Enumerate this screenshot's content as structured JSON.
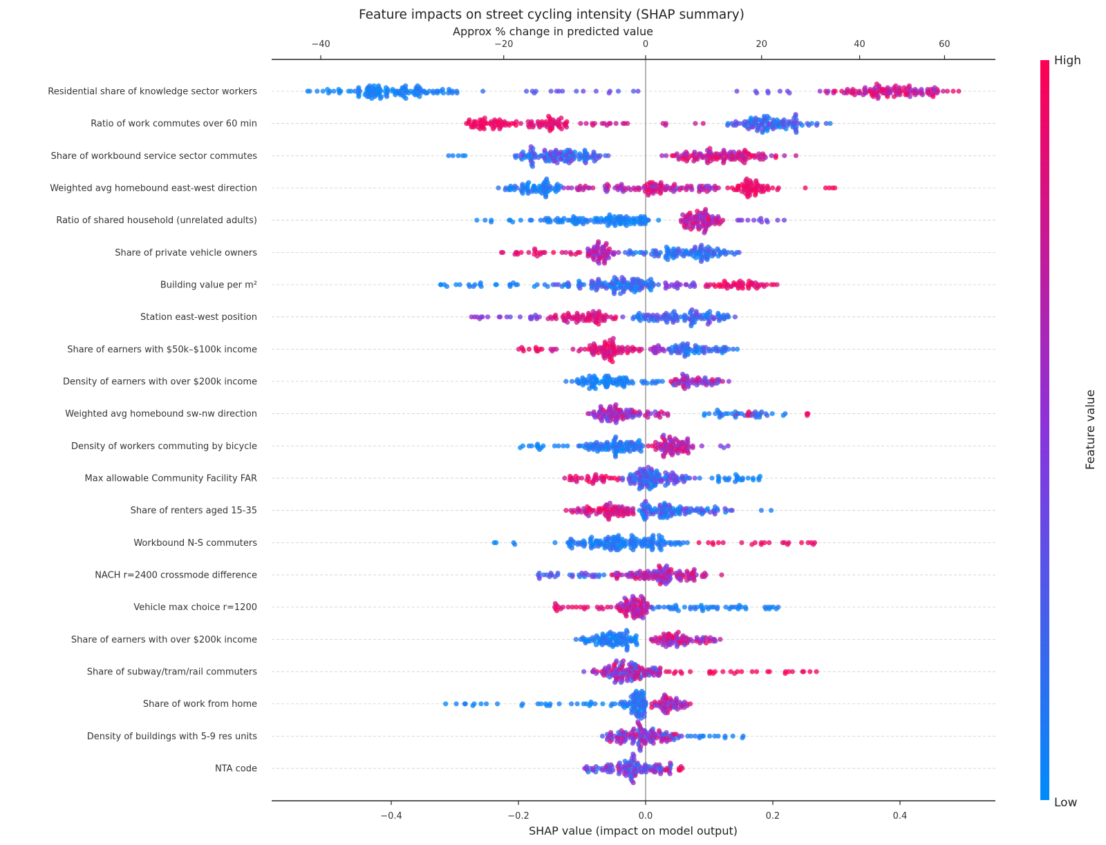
{
  "chart_data": {
    "type": "scatter",
    "subtype": "shap-beeswarm",
    "title": "Feature impacts on street cycling intensity (SHAP summary)",
    "xlabel": "SHAP value (impact on model output)",
    "top_axis_label": "Approx % change in predicted value",
    "top_axis_transform": "percent = (exp(shap) - 1) * 100",
    "xlim": [
      -0.588,
      0.55
    ],
    "xticks": [
      -0.4,
      -0.2,
      0.0,
      0.2,
      0.4
    ],
    "xtick_labels": [
      "−0.4",
      "−0.2",
      "0.0",
      "0.2",
      "0.4"
    ],
    "top_ticks": [
      -40,
      -20,
      0,
      20,
      40,
      60
    ],
    "top_tick_labels": [
      "−40",
      "−20",
      "0",
      "20",
      "40",
      "60"
    ],
    "grid": "dashed horizontal per feature",
    "zero_line": true,
    "colorbar": {
      "label": "Feature value",
      "high_label": "High",
      "low_label": "Low",
      "low_color": "#008bfb",
      "mid_color": "#8b33dc",
      "high_color": "#ff0052",
      "placement": "right"
    },
    "features": [
      {
        "name": "Residential share of knowledge sector workers",
        "groups": [
          {
            "range": [
              -0.54,
              -0.49
            ],
            "n": 8,
            "value": [
              0,
              0.1
            ]
          },
          {
            "range": [
              -0.49,
              -0.28
            ],
            "peak": -0.43,
            "n": 110,
            "value": [
              0,
              0.15
            ]
          },
          {
            "range": [
              -0.26,
              -0.25
            ],
            "n": 1,
            "value": [
              0.1,
              0.2
            ]
          },
          {
            "range": [
              -0.19,
              0.0
            ],
            "n": 16,
            "value": [
              0.25,
              0.45
            ]
          },
          {
            "range": [
              0.14,
              0.25
            ],
            "n": 8,
            "value": [
              0.3,
              0.5
            ]
          },
          {
            "range": [
              0.27,
              0.5
            ],
            "peak": 0.38,
            "n": 120,
            "value": [
              0.55,
              1
            ]
          }
        ]
      },
      {
        "name": "Ratio of work commutes over 60 min",
        "groups": [
          {
            "range": [
              -0.29,
              -0.19
            ],
            "peak": -0.255,
            "n": 55,
            "value": [
              0.85,
              1
            ]
          },
          {
            "range": [
              -0.2,
              -0.11
            ],
            "peak": -0.148,
            "n": 50,
            "value": [
              0.75,
              1
            ]
          },
          {
            "range": [
              -0.11,
              -0.016
            ],
            "n": 14,
            "value": [
              0.7,
              0.85
            ]
          },
          {
            "range": [
              0.026,
              0.094
            ],
            "n": 5,
            "value": [
              0.7,
              0.85
            ]
          },
          {
            "range": [
              0.123,
              0.294
            ],
            "peak": 0.18,
            "n": 110,
            "value": [
              0,
              0.45
            ]
          }
        ]
      },
      {
        "name": "Share of workbound service sector commutes",
        "groups": [
          {
            "range": [
              -0.31,
              -0.27
            ],
            "n": 5,
            "value": [
              0,
              0.1
            ]
          },
          {
            "range": [
              -0.22,
              -0.05
            ],
            "peak": -0.145,
            "n": 120,
            "value": [
              0,
              0.5
            ]
          },
          {
            "range": [
              0.02,
              0.245
            ],
            "peak": 0.1,
            "n": 120,
            "value": [
              0.55,
              1
            ]
          }
        ]
      },
      {
        "name": "Weighted avg homebound east-west direction",
        "groups": [
          {
            "range": [
              -0.24,
              -0.13
            ],
            "peak": -0.16,
            "n": 70,
            "value": [
              0,
              0.2
            ]
          },
          {
            "range": [
              -0.13,
              0.12
            ],
            "n": 90,
            "value": [
              0.4,
              0.85
            ]
          },
          {
            "range": [
              -0.01,
              0.03
            ],
            "peak": 0.005,
            "n": 25,
            "value": [
              0.7,
              0.95
            ]
          },
          {
            "range": [
              0.12,
              0.22
            ],
            "peak": 0.16,
            "n": 60,
            "value": [
              0.85,
              1
            ]
          },
          {
            "range": [
              0.25,
              0.31
            ],
            "n": 5,
            "value": [
              0.9,
              1
            ]
          }
        ]
      },
      {
        "name": "Ratio of shared household (unrelated adults)",
        "groups": [
          {
            "range": [
              -0.285,
              -0.19
            ],
            "n": 8,
            "value": [
              0,
              0.1
            ]
          },
          {
            "range": [
              -0.19,
              0.026
            ],
            "peak": -0.016,
            "n": 110,
            "value": [
              0,
              0.15
            ]
          },
          {
            "range": [
              0.044,
              0.126
            ],
            "peak": 0.08,
            "n": 90,
            "value": [
              0.45,
              1
            ]
          },
          {
            "range": [
              0.126,
              0.22
            ],
            "n": 12,
            "value": [
              0.3,
              0.5
            ]
          }
        ]
      },
      {
        "name": "Share of private vehicle owners",
        "groups": [
          {
            "range": [
              -0.23,
              -0.1
            ],
            "n": 25,
            "value": [
              0.8,
              1
            ]
          },
          {
            "range": [
              -0.1,
              -0.04
            ],
            "peak": -0.07,
            "n": 60,
            "value": [
              0.5,
              0.9
            ]
          },
          {
            "range": [
              -0.04,
              0.15
            ],
            "peak": 0.08,
            "n": 110,
            "value": [
              0,
              0.35
            ]
          }
        ]
      },
      {
        "name": "Building value per m²",
        "groups": [
          {
            "range": [
              -0.33,
              -0.15
            ],
            "n": 25,
            "value": [
              0,
              0.12
            ]
          },
          {
            "range": [
              -0.15,
              0.03
            ],
            "peak": -0.02,
            "n": 120,
            "value": [
              0,
              0.4
            ]
          },
          {
            "range": [
              0.03,
              0.08
            ],
            "n": 20,
            "value": [
              0.35,
              0.6
            ]
          },
          {
            "range": [
              0.08,
              0.21
            ],
            "peak": 0.17,
            "n": 50,
            "value": [
              0.8,
              1
            ]
          }
        ]
      },
      {
        "name": "Station east-west position",
        "groups": [
          {
            "range": [
              -0.28,
              -0.16
            ],
            "n": 20,
            "value": [
              0.35,
              0.6
            ]
          },
          {
            "range": [
              -0.16,
              -0.04
            ],
            "peak": -0.077,
            "n": 70,
            "value": [
              0.7,
              1
            ]
          },
          {
            "range": [
              -0.04,
              0.145
            ],
            "peak": 0.07,
            "n": 110,
            "value": [
              0,
              0.45
            ]
          }
        ]
      },
      {
        "name": "Share of earners with $50k–$100k income",
        "groups": [
          {
            "range": [
              -0.2,
              -0.1
            ],
            "n": 18,
            "value": [
              0.75,
              1
            ]
          },
          {
            "range": [
              -0.1,
              0.0
            ],
            "peak": -0.06,
            "n": 80,
            "value": [
              0.7,
              1
            ]
          },
          {
            "range": [
              0.0,
              0.03
            ],
            "n": 15,
            "value": [
              0.45,
              0.65
            ]
          },
          {
            "range": [
              0.03,
              0.155
            ],
            "peak": 0.066,
            "n": 70,
            "value": [
              0,
              0.35
            ]
          }
        ]
      },
      {
        "name": "Density of earners with over $200k income",
        "groups": [
          {
            "range": [
              -0.14,
              -0.01
            ],
            "peak": -0.074,
            "n": 75,
            "value": [
              0,
              0.15
            ]
          },
          {
            "range": [
              -0.01,
              0.03
            ],
            "n": 10,
            "value": [
              0,
              0.2
            ]
          },
          {
            "range": [
              0.03,
              0.145
            ],
            "peak": 0.06,
            "n": 60,
            "value": [
              0.2,
              0.95
            ]
          }
        ]
      },
      {
        "name": "Weighted avg homebound sw-nw direction",
        "groups": [
          {
            "range": [
              -0.095,
              0.05
            ],
            "peak": -0.05,
            "n": 100,
            "value": [
              0.35,
              0.9
            ]
          },
          {
            "range": [
              0.09,
              0.22
            ],
            "n": 35,
            "value": [
              0,
              0.3
            ]
          },
          {
            "range": [
              0.14,
              0.2
            ],
            "n": 6,
            "value": [
              0.8,
              1
            ]
          },
          {
            "range": [
              0.24,
              0.26
            ],
            "n": 3,
            "value": [
              0.9,
              1
            ]
          }
        ]
      },
      {
        "name": "Density of workers commuting by bicycle",
        "groups": [
          {
            "range": [
              -0.2,
              -0.12
            ],
            "n": 15,
            "value": [
              0,
              0.1
            ]
          },
          {
            "range": [
              -0.12,
              0.0
            ],
            "peak": -0.02,
            "n": 90,
            "value": [
              0,
              0.25
            ]
          },
          {
            "range": [
              0.0,
              0.1
            ],
            "peak": 0.04,
            "n": 80,
            "value": [
              0.4,
              0.95
            ]
          },
          {
            "range": [
              0.11,
              0.13
            ],
            "n": 3,
            "value": [
              0.3,
              0.5
            ]
          }
        ]
      },
      {
        "name": "Max allowable Community Facility FAR",
        "groups": [
          {
            "range": [
              -0.13,
              -0.04
            ],
            "n": 35,
            "value": [
              0.75,
              1
            ]
          },
          {
            "range": [
              -0.04,
              0.08
            ],
            "peak": 0.0,
            "n": 120,
            "value": [
              0,
              0.5
            ]
          },
          {
            "range": [
              0.08,
              0.18
            ],
            "n": 25,
            "value": [
              0,
              0.15
            ]
          }
        ]
      },
      {
        "name": "Share of renters aged 15-35",
        "groups": [
          {
            "range": [
              -0.13,
              -0.01
            ],
            "peak": -0.05,
            "n": 80,
            "value": [
              0.6,
              1
            ]
          },
          {
            "range": [
              -0.01,
              0.15
            ],
            "peak": 0.0,
            "n": 110,
            "value": [
              0,
              0.45
            ]
          },
          {
            "range": [
              0.17,
              0.2
            ],
            "n": 2,
            "value": [
              0,
              0.1
            ]
          }
        ]
      },
      {
        "name": "Workbound N-S commuters",
        "groups": [
          {
            "range": [
              -0.25,
              -0.14
            ],
            "n": 5,
            "value": [
              0,
              0.1
            ]
          },
          {
            "range": [
              -0.14,
              0.07
            ],
            "peak": -0.016,
            "n": 150,
            "value": [
              0,
              0.2
            ]
          },
          {
            "range": [
              0.08,
              0.27
            ],
            "n": 22,
            "value": [
              0.85,
              1
            ]
          }
        ]
      },
      {
        "name": "NACH r=2400 crossmode difference",
        "groups": [
          {
            "range": [
              -0.17,
              -0.06
            ],
            "n": 30,
            "value": [
              0.1,
              0.5
            ]
          },
          {
            "range": [
              -0.06,
              0.11
            ],
            "peak": 0.03,
            "n": 120,
            "value": [
              0.4,
              0.95
            ]
          },
          {
            "range": [
              0.115,
              0.125
            ],
            "n": 1,
            "value": [
              0.8,
              0.9
            ]
          }
        ]
      },
      {
        "name": "Vehicle max choice r=1200",
        "groups": [
          {
            "range": [
              -0.15,
              -0.06
            ],
            "n": 20,
            "value": [
              0.8,
              1
            ]
          },
          {
            "range": [
              -0.06,
              0.01
            ],
            "peak": -0.005,
            "n": 80,
            "value": [
              0.45,
              0.95
            ]
          },
          {
            "range": [
              0.01,
              0.21
            ],
            "n": 50,
            "value": [
              0,
              0.15
            ]
          }
        ]
      },
      {
        "name": "Share of earners with over $200k income",
        "groups": [
          {
            "range": [
              -0.115,
              0.005
            ],
            "peak": -0.034,
            "n": 90,
            "value": [
              0,
              0.2
            ]
          },
          {
            "range": [
              0.005,
              0.126
            ],
            "peak": 0.03,
            "n": 80,
            "value": [
              0.4,
              1
            ]
          }
        ]
      },
      {
        "name": "Share of subway/tram/rail commuters",
        "groups": [
          {
            "range": [
              -0.1,
              0.035
            ],
            "peak": -0.01,
            "n": 130,
            "value": [
              0.2,
              0.95
            ]
          },
          {
            "range": [
              0.035,
              0.08
            ],
            "n": 6,
            "value": [
              0.85,
              1
            ]
          },
          {
            "range": [
              0.1,
              0.276
            ],
            "n": 22,
            "value": [
              0.9,
              1
            ]
          }
        ]
      },
      {
        "name": "Share of work from home",
        "groups": [
          {
            "range": [
              -0.316,
              -0.045
            ],
            "n": 30,
            "value": [
              0,
              0.1
            ]
          },
          {
            "range": [
              -0.045,
              0.005
            ],
            "peak": -0.006,
            "n": 70,
            "value": [
              0,
              0.3
            ]
          },
          {
            "range": [
              0.005,
              0.08
            ],
            "peak": 0.03,
            "n": 60,
            "value": [
              0.35,
              1
            ]
          }
        ]
      },
      {
        "name": "Density of buildings with 5-9 res units",
        "groups": [
          {
            "range": [
              -0.077,
              0.066
            ],
            "peak": -0.01,
            "n": 130,
            "value": [
              0.1,
              0.9
            ]
          },
          {
            "range": [
              0.066,
              0.155
            ],
            "n": 15,
            "value": [
              0,
              0.15
            ]
          }
        ]
      },
      {
        "name": "NTA code",
        "groups": [
          {
            "range": [
              -0.1,
              0.05
            ],
            "peak": -0.02,
            "n": 120,
            "value": [
              0.1,
              0.7
            ]
          },
          {
            "range": [
              0.03,
              0.065
            ],
            "n": 8,
            "value": [
              0.8,
              1
            ]
          }
        ]
      }
    ]
  }
}
